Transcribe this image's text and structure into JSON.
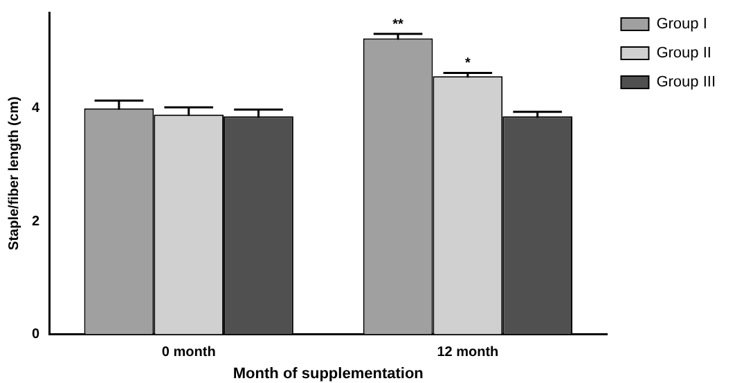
{
  "chart_data": {
    "type": "bar",
    "xlabel": "Month of supplementation",
    "ylabel": "Staple/fiber length (cm)",
    "categories": [
      "0 month",
      "12 month"
    ],
    "series": [
      {
        "name": "Group I",
        "color": "#a0a0a0",
        "values": [
          4.0,
          5.24
        ],
        "errors": [
          0.14,
          0.08
        ]
      },
      {
        "name": "Group II",
        "color": "#d0d0d0",
        "values": [
          3.89,
          4.57
        ],
        "errors": [
          0.13,
          0.06
        ]
      },
      {
        "name": "Group III",
        "color": "#505050",
        "values": [
          3.86,
          3.86
        ],
        "errors": [
          0.12,
          0.08
        ]
      }
    ],
    "ylim": [
      0,
      5.7
    ],
    "yticks": [
      0,
      2,
      4
    ],
    "grid": false,
    "legend": "top right",
    "annotations": [
      "**",
      "*"
    ]
  }
}
